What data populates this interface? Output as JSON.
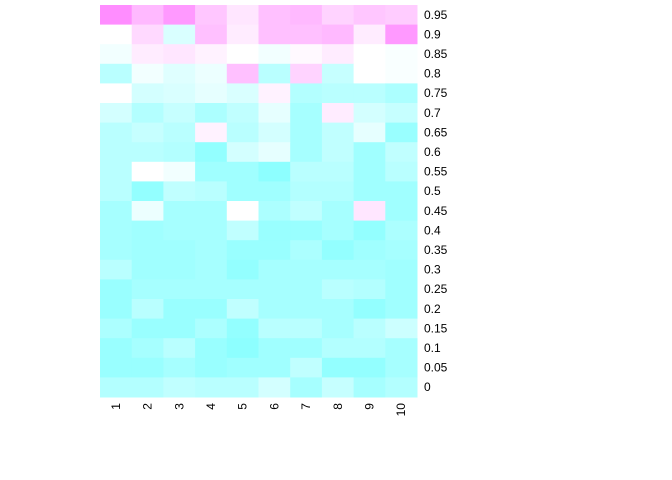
{
  "chart_data": {
    "type": "heatmap",
    "title": "",
    "xlabel": "",
    "ylabel": "",
    "legend": "none",
    "color_scale": {
      "low": "#80ffff",
      "mid": "#ffffff",
      "high": "#ff80ff"
    },
    "value_range": [
      -1,
      1
    ],
    "columns": [
      "1",
      "2",
      "3",
      "4",
      "5",
      "6",
      "7",
      "8",
      "9",
      "10"
    ],
    "rows": [
      "0.95",
      "0.9",
      "0.85",
      "0.8",
      "0.75",
      "0.7",
      "0.65",
      "0.6",
      "0.55",
      "0.5",
      "0.45",
      "0.4",
      "0.35",
      "0.3",
      "0.25",
      "0.2",
      "0.15",
      "0.1",
      "0.05",
      "0"
    ],
    "values": [
      [
        0.9,
        0.55,
        0.8,
        0.45,
        0.2,
        0.5,
        0.55,
        0.35,
        0.45,
        0.4
      ],
      [
        0.0,
        0.3,
        -0.3,
        0.5,
        0.15,
        0.5,
        0.5,
        0.55,
        0.15,
        0.8
      ],
      [
        -0.1,
        0.15,
        0.2,
        0.1,
        0.0,
        -0.1,
        0.05,
        0.15,
        0.0,
        -0.05
      ],
      [
        -0.55,
        -0.1,
        -0.25,
        -0.15,
        0.5,
        -0.55,
        0.35,
        -0.45,
        0.0,
        -0.05
      ],
      [
        0.0,
        -0.35,
        -0.3,
        -0.2,
        -0.3,
        0.1,
        -0.6,
        -0.55,
        -0.55,
        -0.65
      ],
      [
        -0.35,
        -0.6,
        -0.45,
        -0.65,
        -0.5,
        -0.2,
        -0.7,
        0.15,
        -0.35,
        -0.45
      ],
      [
        -0.55,
        -0.45,
        -0.55,
        0.1,
        -0.55,
        -0.35,
        -0.7,
        -0.5,
        -0.2,
        -0.8
      ],
      [
        -0.55,
        -0.55,
        -0.6,
        -0.85,
        -0.35,
        -0.2,
        -0.7,
        -0.5,
        -0.75,
        -0.5
      ],
      [
        -0.55,
        0.0,
        -0.1,
        -0.75,
        -0.75,
        -0.9,
        -0.55,
        -0.55,
        -0.75,
        -0.55
      ],
      [
        -0.55,
        -0.85,
        -0.5,
        -0.55,
        -0.75,
        -0.75,
        -0.6,
        -0.6,
        -0.75,
        -0.75
      ],
      [
        -0.7,
        -0.15,
        -0.7,
        -0.7,
        0.0,
        -0.65,
        -0.5,
        -0.7,
        0.2,
        -0.75
      ],
      [
        -0.7,
        -0.75,
        -0.7,
        -0.7,
        -0.5,
        -0.8,
        -0.8,
        -0.7,
        -0.85,
        -0.65
      ],
      [
        -0.7,
        -0.75,
        -0.75,
        -0.7,
        -0.8,
        -0.8,
        -0.65,
        -0.85,
        -0.75,
        -0.7
      ],
      [
        -0.55,
        -0.75,
        -0.75,
        -0.7,
        -0.85,
        -0.7,
        -0.7,
        -0.7,
        -0.7,
        -0.75
      ],
      [
        -0.8,
        -0.7,
        -0.7,
        -0.7,
        -0.7,
        -0.7,
        -0.7,
        -0.55,
        -0.6,
        -0.75
      ],
      [
        -0.8,
        -0.55,
        -0.8,
        -0.8,
        -0.5,
        -0.7,
        -0.7,
        -0.7,
        -0.85,
        -0.75
      ],
      [
        -0.65,
        -0.8,
        -0.8,
        -0.65,
        -0.85,
        -0.55,
        -0.55,
        -0.7,
        -0.55,
        -0.4
      ],
      [
        -0.8,
        -0.7,
        -0.55,
        -0.8,
        -0.9,
        -0.75,
        -0.75,
        -0.6,
        -0.6,
        -0.7
      ],
      [
        -0.8,
        -0.8,
        -0.7,
        -0.8,
        -0.75,
        -0.75,
        -0.5,
        -0.85,
        -0.85,
        -0.7
      ],
      [
        -0.6,
        -0.6,
        -0.5,
        -0.55,
        -0.55,
        -0.35,
        -0.7,
        -0.45,
        -0.7,
        -0.6
      ]
    ]
  }
}
